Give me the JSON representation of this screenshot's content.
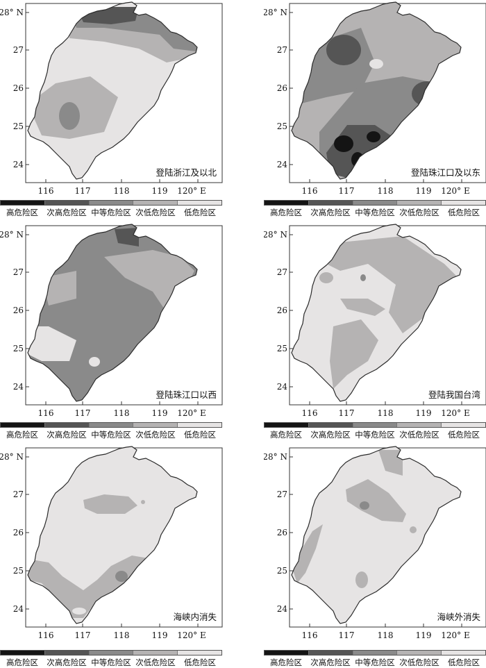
{
  "axes": {
    "lon_ticks": [
      "116",
      "117",
      "118",
      "119",
      "120° E"
    ],
    "lat_ticks": [
      "28° N",
      "27",
      "26",
      "25",
      "24"
    ]
  },
  "legend": {
    "levels": [
      {
        "label": "高危险区",
        "color": "#141414"
      },
      {
        "label": "次高危险区",
        "color": "#555555"
      },
      {
        "label": "中等危险区",
        "color": "#8a8a8a"
      },
      {
        "label": "次低危险区",
        "color": "#b5b3b3"
      },
      {
        "label": "低危险区",
        "color": "#e6e4e4"
      }
    ]
  },
  "panels": [
    {
      "id": "p1",
      "label": "登陆浙江及以北"
    },
    {
      "id": "p2",
      "label": "登陆珠江口及以东"
    },
    {
      "id": "p3",
      "label": "登陆珠江口以西"
    },
    {
      "id": "p4",
      "label": "登陆我国台湾"
    },
    {
      "id": "p5",
      "label": "海峡内消失"
    },
    {
      "id": "p6",
      "label": "海峡外消失"
    }
  ],
  "outline_color": "#2a2a2a"
}
